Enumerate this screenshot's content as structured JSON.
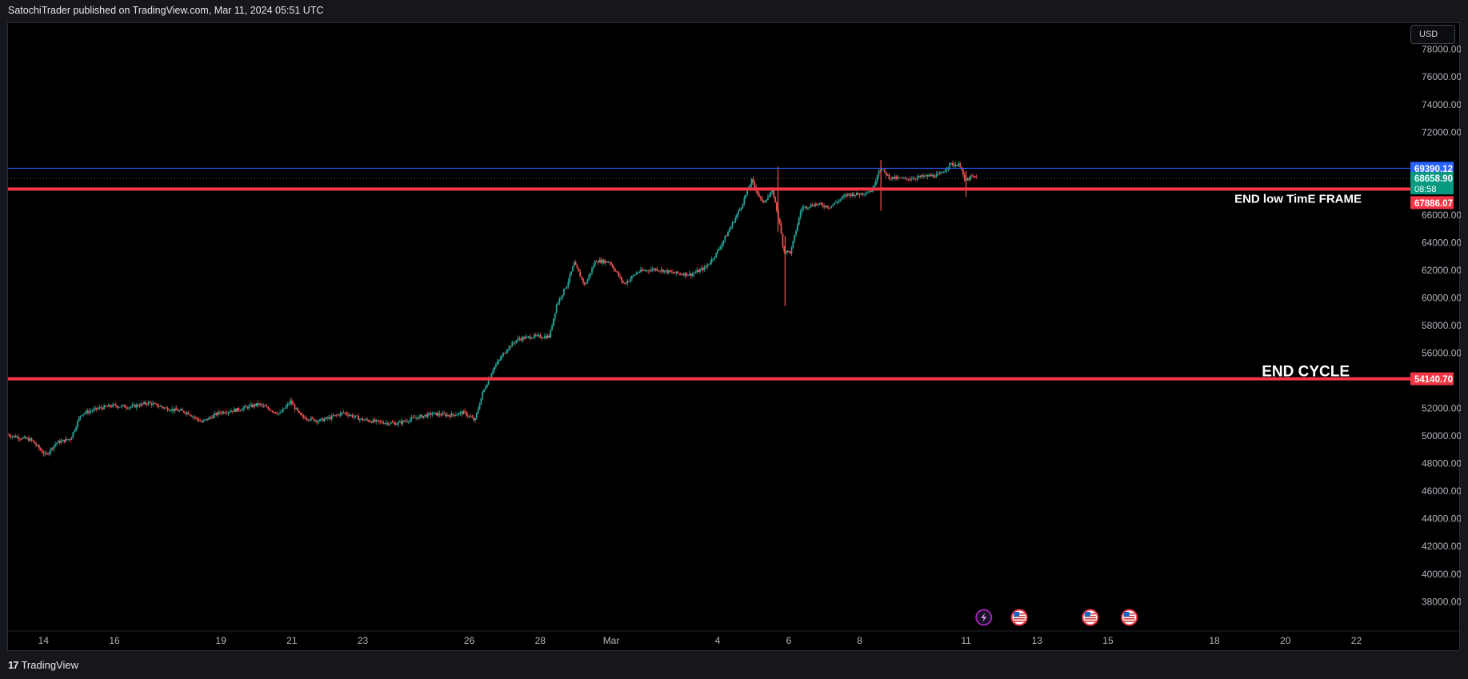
{
  "header": {
    "publisher_text": "SatochiTrader published on TradingView.com, Mar 11, 2024 05:51 UTC"
  },
  "toolbar": {
    "currency_label": "USD"
  },
  "footer": {
    "brand_mark": "17",
    "brand_name": "TradingView"
  },
  "colors": {
    "background": "#000000",
    "up": "#26a69a",
    "down": "#ef5350",
    "resistance_line": "#f23645",
    "blue_line": "#2962ff",
    "price_tag_green": "#089981"
  },
  "chart_data": {
    "type": "candlestick",
    "ylim": [
      36800,
      79200
    ],
    "y_ticks": [
      "38000.00",
      "40000.00",
      "42000.00",
      "44000.00",
      "46000.00",
      "48000.00",
      "50000.00",
      "52000.00",
      "56000.00",
      "58000.00",
      "60000.00",
      "62000.00",
      "64000.00",
      "66000.00",
      "72000.00",
      "74000.00",
      "76000.00",
      "78000.00"
    ],
    "x_ticks": [
      {
        "label": "14",
        "day": 14
      },
      {
        "label": "16",
        "day": 16
      },
      {
        "label": "19",
        "day": 19
      },
      {
        "label": "21",
        "day": 21
      },
      {
        "label": "23",
        "day": 23
      },
      {
        "label": "26",
        "day": 26
      },
      {
        "label": "28",
        "day": 28
      },
      {
        "label": "Mar",
        "day": 30
      },
      {
        "label": "4",
        "day": 33
      },
      {
        "label": "6",
        "day": 35
      },
      {
        "label": "8",
        "day": 37
      },
      {
        "label": "11",
        "day": 40
      },
      {
        "label": "13",
        "day": 42
      },
      {
        "label": "15",
        "day": 44
      },
      {
        "label": "18",
        "day": 47
      },
      {
        "label": "20",
        "day": 49
      },
      {
        "label": "22",
        "day": 51
      }
    ],
    "x_range_days": [
      13.0,
      52.5
    ],
    "x_axis_note": "day index counted from Feb 1, 2024 (Mar 1 = 30)",
    "price_path": [
      [
        13.0,
        50100
      ],
      [
        13.7,
        49700
      ],
      [
        14.1,
        48600
      ],
      [
        14.4,
        49500
      ],
      [
        14.8,
        49800
      ],
      [
        15.1,
        51600
      ],
      [
        15.6,
        52000
      ],
      [
        16.0,
        52200
      ],
      [
        16.5,
        52100
      ],
      [
        17.0,
        52400
      ],
      [
        17.5,
        52000
      ],
      [
        18.1,
        51700
      ],
      [
        18.5,
        51000
      ],
      [
        19.0,
        51700
      ],
      [
        19.5,
        51900
      ],
      [
        20.1,
        52300
      ],
      [
        20.7,
        51600
      ],
      [
        21.0,
        52500
      ],
      [
        21.3,
        51400
      ],
      [
        21.8,
        51100
      ],
      [
        22.1,
        51300
      ],
      [
        22.5,
        51700
      ],
      [
        23.0,
        51200
      ],
      [
        23.5,
        51000
      ],
      [
        24.0,
        50900
      ],
      [
        24.5,
        51300
      ],
      [
        25.0,
        51600
      ],
      [
        25.5,
        51500
      ],
      [
        25.9,
        51700
      ],
      [
        26.2,
        51100
      ],
      [
        26.4,
        53000
      ],
      [
        26.7,
        54800
      ],
      [
        27.1,
        56300
      ],
      [
        27.4,
        57000
      ],
      [
        27.8,
        57200
      ],
      [
        28.3,
        57200
      ],
      [
        28.5,
        59500
      ],
      [
        28.8,
        61000
      ],
      [
        29.0,
        62500
      ],
      [
        29.3,
        60900
      ],
      [
        29.6,
        62700
      ],
      [
        30.0,
        62600
      ],
      [
        30.4,
        61000
      ],
      [
        30.8,
        61900
      ],
      [
        31.3,
        62100
      ],
      [
        31.8,
        61800
      ],
      [
        32.3,
        61700
      ],
      [
        32.7,
        62200
      ],
      [
        33.0,
        63200
      ],
      [
        33.3,
        64600
      ],
      [
        33.7,
        66600
      ],
      [
        34.0,
        68500
      ],
      [
        34.3,
        66900
      ],
      [
        34.6,
        67700
      ],
      [
        34.8,
        65200
      ],
      [
        34.9,
        63400
      ],
      [
        35.1,
        63300
      ],
      [
        35.4,
        66500
      ],
      [
        35.8,
        66800
      ],
      [
        36.2,
        66600
      ],
      [
        36.7,
        67500
      ],
      [
        37.0,
        67500
      ],
      [
        37.4,
        67800
      ],
      [
        37.6,
        69400
      ],
      [
        37.9,
        68700
      ],
      [
        38.3,
        68600
      ],
      [
        38.9,
        68800
      ],
      [
        39.3,
        68900
      ],
      [
        39.6,
        69700
      ],
      [
        39.9,
        69600
      ],
      [
        40.0,
        68400
      ],
      [
        40.2,
        68800
      ],
      [
        40.3,
        68700
      ]
    ],
    "wicks": [
      {
        "day": 34.7,
        "high": 69500,
        "low": 64800
      },
      {
        "day": 34.9,
        "high": 64500,
        "low": 59400
      },
      {
        "day": 37.6,
        "high": 70000,
        "low": 66300
      },
      {
        "day": 40.0,
        "high": 69200,
        "low": 67300
      }
    ],
    "horizontal_lines": [
      {
        "price": 67886.07,
        "color": "#f23645",
        "width": 4,
        "label": "67886.07",
        "label_bg": "#f23645"
      },
      {
        "price": 54140.7,
        "color": "#f23645",
        "width": 4,
        "label": "54140.70",
        "label_bg": "#f23645"
      },
      {
        "price": 69390.12,
        "color": "#2962ff",
        "width": 1,
        "label": "69390.12",
        "label_bg": "#2962ff"
      }
    ],
    "dotted_line_price": 68658.9,
    "last_price": {
      "price": 68658.9,
      "label": "68658.90",
      "countdown": "08:58"
    },
    "annotations": [
      {
        "text": "END low TimE FRAME",
        "price": 67886.07
      },
      {
        "text": "END CYCLE",
        "price": 54140.7
      }
    ],
    "events": [
      {
        "day": 40.5,
        "icon": "lightning-icon"
      },
      {
        "day": 41.5,
        "icon": "us-flag-icon"
      },
      {
        "day": 43.5,
        "icon": "us-flag-icon"
      },
      {
        "day": 44.6,
        "icon": "us-flag-icon"
      }
    ]
  }
}
